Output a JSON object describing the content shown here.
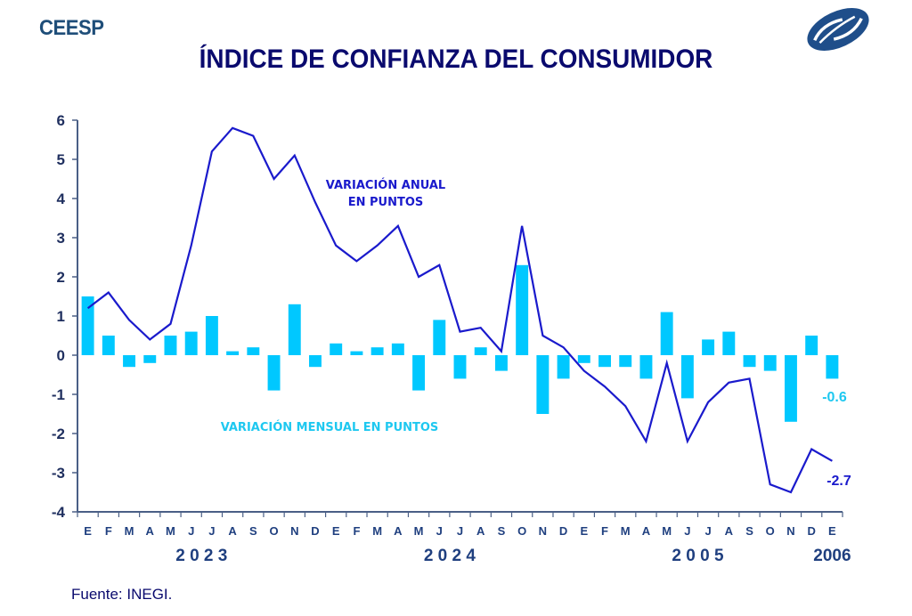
{
  "header": {
    "brand": "CEESP",
    "logo_icon": "ceesp-logo-icon"
  },
  "chart_data": {
    "type": "bar+line",
    "title": "ÍNDICE DE CONFIANZA DEL CONSUMIDOR",
    "xlabel": "",
    "ylabel": "",
    "ylim": [
      -4,
      6
    ],
    "yticks": [
      "6",
      "5",
      "4",
      "3",
      "2",
      "1",
      "0",
      "-1",
      "-2",
      "-3",
      "-4"
    ],
    "ytick_values": [
      6,
      5,
      4,
      3,
      2,
      1,
      0,
      -1,
      -2,
      -3,
      -4
    ],
    "grid": false,
    "categories": [
      "E",
      "F",
      "M",
      "A",
      "M",
      "J",
      "J",
      "A",
      "S",
      "O",
      "N",
      "D",
      "E",
      "F",
      "M",
      "A",
      "M",
      "J",
      "J",
      "A",
      "S",
      "O",
      "N",
      "D",
      "E",
      "F",
      "M",
      "A",
      "M",
      "J",
      "J",
      "A",
      "S",
      "O",
      "N",
      "D",
      "E"
    ],
    "year_labels": [
      {
        "label": "2 0 2 3",
        "month_index": 5.5
      },
      {
        "label": "2 0 2 4",
        "month_index": 17.5
      },
      {
        "label": "2 0 0 5",
        "month_index": 29.5
      },
      {
        "label": "2006",
        "month_index": 36
      }
    ],
    "series": [
      {
        "name": "VARIACIÓN MENSUAL EN PUNTOS",
        "type": "bar",
        "color": "#00c8ff",
        "values": [
          1.5,
          0.5,
          -0.3,
          -0.2,
          0.5,
          0.6,
          1.0,
          0.1,
          0.2,
          -0.9,
          1.3,
          -0.3,
          0.3,
          0.1,
          0.2,
          0.3,
          -0.9,
          0.9,
          -0.6,
          0.2,
          -0.4,
          2.3,
          -1.5,
          -0.6,
          -0.2,
          -0.3,
          -0.3,
          -0.6,
          1.1,
          -1.1,
          0.4,
          0.6,
          -0.3,
          -0.4,
          -1.7,
          0.5,
          -0.6
        ]
      },
      {
        "name": "VARIACIÓN ANUAL EN PUNTOS",
        "type": "line",
        "color": "#1a1acc",
        "values": [
          1.2,
          1.6,
          0.9,
          0.4,
          0.8,
          2.8,
          5.2,
          5.8,
          5.6,
          4.5,
          5.1,
          3.9,
          2.8,
          2.4,
          2.8,
          3.3,
          2.0,
          2.3,
          0.6,
          0.7,
          0.1,
          3.3,
          0.5,
          0.2,
          -0.4,
          -0.8,
          -1.3,
          -2.2,
          -0.2,
          -2.2,
          -1.2,
          -0.7,
          -0.6,
          -3.3,
          -3.5,
          -2.4,
          -2.7
        ]
      }
    ],
    "annotations": {
      "annual_line1": "VARIACIÓN ANUAL",
      "annual_line2": "EN PUNTOS",
      "monthly": "VARIACIÓN MENSUAL EN PUNTOS",
      "last_bar_value": "-0.6",
      "last_line_value": "-2.7"
    }
  },
  "footer": {
    "source": "Fuente: INEGI."
  }
}
